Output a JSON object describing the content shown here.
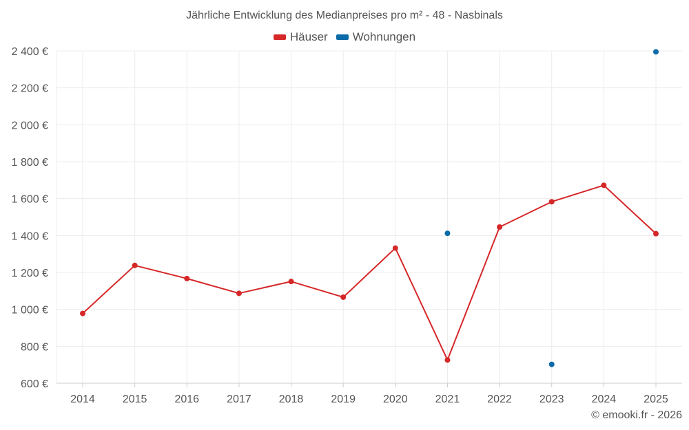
{
  "chart_data": {
    "type": "line",
    "title": "Jährliche Entwicklung des Medianpreises pro m² - 48 - Nasbinals",
    "categories": [
      "2014",
      "2015",
      "2016",
      "2017",
      "2018",
      "2019",
      "2020",
      "2021",
      "2022",
      "2023",
      "2024",
      "2025"
    ],
    "series": [
      {
        "name": "Häuser",
        "color": "#d62728",
        "values": [
          978,
          1238,
          1167,
          1087,
          1151,
          1066,
          1332,
          726,
          1446,
          1583,
          1672,
          1410
        ]
      },
      {
        "name": "Wohnungen",
        "color": "#0b6aa8",
        "values": [
          null,
          null,
          null,
          null,
          null,
          null,
          null,
          1412,
          null,
          702,
          null,
          2395
        ]
      }
    ],
    "y_ticks": [
      "600 €",
      "800 €",
      "1 000 €",
      "1 200 €",
      "1 400 €",
      "1 600 €",
      "1 800 €",
      "2 000 €",
      "2 200 €",
      "2 400 €"
    ],
    "y_tick_values": [
      600,
      800,
      1000,
      1200,
      1400,
      1600,
      1800,
      2000,
      2200,
      2400
    ],
    "ylim": [
      600,
      2400
    ],
    "xlabel": "",
    "ylabel": "",
    "grid": true,
    "legend_position": "top-center"
  },
  "credit": "© emooki.fr - 2026"
}
